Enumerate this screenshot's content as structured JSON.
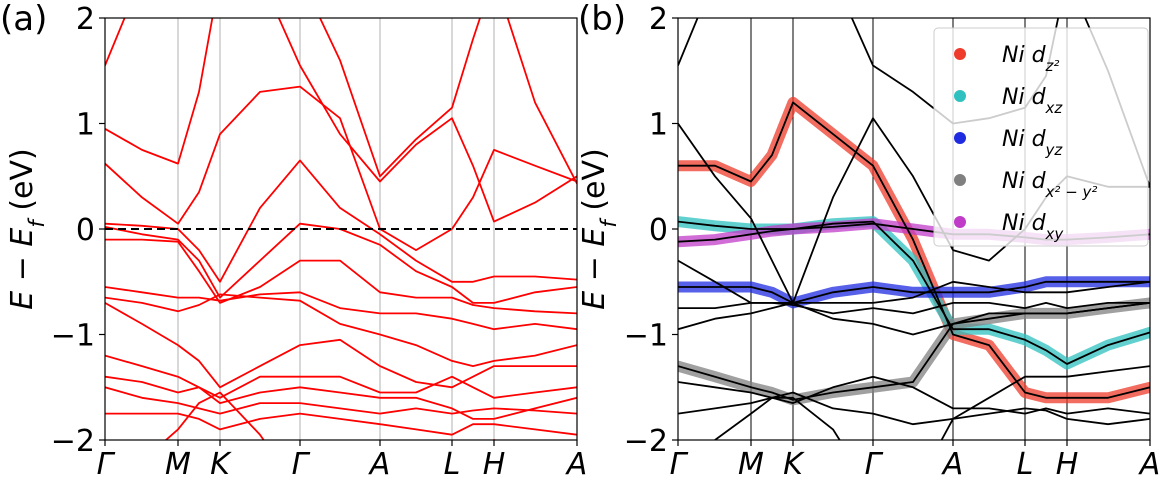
{
  "chart_data": [
    {
      "type": "line",
      "panel_label": "(a)",
      "ylabel": "E − E",
      "ylabel_sub": "f",
      "ylabel_unit": " (eV)",
      "xlim": [
        0,
        4.72
      ],
      "ylim": [
        -2,
        2
      ],
      "xticks": [
        {
          "value": 0,
          "label": "Γ"
        },
        {
          "value": 0.73,
          "label": "M"
        },
        {
          "value": 1.15,
          "label": "K"
        },
        {
          "value": 1.95,
          "label": "Γ"
        },
        {
          "value": 2.75,
          "label": "A"
        },
        {
          "value": 3.47,
          "label": "L"
        },
        {
          "value": 3.89,
          "label": "H"
        },
        {
          "value": 4.72,
          "label": "A"
        }
      ],
      "yticks": [
        {
          "value": -2,
          "label": "−2"
        },
        {
          "value": -1,
          "label": "−1"
        },
        0,
        1,
        2
      ],
      "vline_color": "#b0b0b0",
      "hline": 0,
      "band_color": "#ff0000",
      "x": [
        0,
        0.37,
        0.73,
        0.94,
        1.15,
        1.55,
        1.95,
        2.35,
        2.75,
        3.11,
        3.47,
        3.68,
        3.89,
        4.3,
        4.72
      ],
      "bands": [
        {
          "values": [
            0.95,
            0.75,
            0.62,
            1.3,
            2.4,
            2.4,
            1.55,
            0.9,
            0.45,
            0.8,
            1.05,
            0.6,
            0.07,
            0.25,
            0.5
          ]
        },
        {
          "values": [
            1.55,
            2.4,
            2.4,
            2.4,
            2.4,
            2.4,
            2.4,
            1.6,
            0.5,
            0.85,
            1.15,
            1.8,
            2.4,
            1.2,
            0.43
          ]
        },
        {
          "values": [
            0.62,
            0.3,
            0.05,
            0.35,
            0.9,
            1.3,
            1.35,
            1.05,
            0.0,
            -0.2,
            0.0,
            0.3,
            0.75,
            0.6,
            0.45
          ]
        },
        {
          "values": [
            0.05,
            0.03,
            0.0,
            -0.2,
            -0.5,
            0.2,
            0.65,
            0.2,
            -0.05,
            -0.3,
            -0.5,
            -0.5,
            -0.45,
            -0.45,
            -0.48
          ]
        },
        {
          "values": [
            0.02,
            -0.05,
            -0.1,
            -0.3,
            -0.65,
            -0.3,
            0.05,
            0.0,
            -0.15,
            -0.4,
            -0.55,
            -0.7,
            -0.7,
            -0.6,
            -0.55
          ]
        },
        {
          "values": [
            -0.1,
            -0.1,
            -0.12,
            -0.4,
            -0.7,
            -0.55,
            -0.3,
            -0.3,
            -0.6,
            -0.65,
            -0.65,
            -0.72,
            -0.75,
            -0.78,
            -0.8
          ]
        },
        {
          "values": [
            -0.55,
            -0.6,
            -0.65,
            -0.65,
            -0.68,
            -0.62,
            -0.6,
            -0.75,
            -0.8,
            -0.8,
            -0.85,
            -0.9,
            -0.95,
            -0.9,
            -0.95
          ]
        },
        {
          "values": [
            -0.65,
            -0.7,
            -0.78,
            -0.72,
            -0.62,
            -0.65,
            -0.68,
            -0.9,
            -1.0,
            -1.1,
            -1.25,
            -1.3,
            -1.25,
            -1.2,
            -1.1
          ]
        },
        {
          "values": [
            -0.7,
            -0.9,
            -1.1,
            -1.25,
            -1.5,
            -1.3,
            -1.1,
            -1.05,
            -1.3,
            -1.45,
            -1.5,
            -1.4,
            -1.3,
            -1.3,
            -1.3
          ]
        },
        {
          "values": [
            -1.2,
            -1.3,
            -1.4,
            -1.5,
            -1.6,
            -1.4,
            -1.4,
            -1.4,
            -1.55,
            -1.55,
            -1.4,
            -1.5,
            -1.6,
            -1.55,
            -1.5
          ]
        },
        {
          "values": [
            -1.4,
            -1.45,
            -1.55,
            -1.5,
            -1.65,
            -1.55,
            -1.5,
            -1.55,
            -1.6,
            -1.6,
            -1.7,
            -1.8,
            -1.8,
            -1.7,
            -1.6
          ]
        },
        {
          "values": [
            -1.5,
            -1.6,
            -1.65,
            -1.7,
            -1.75,
            -1.65,
            -1.65,
            -1.7,
            -1.75,
            -1.7,
            -1.75,
            -1.72,
            -1.7,
            -1.72,
            -1.75
          ]
        },
        {
          "values": [
            -1.75,
            -1.75,
            -1.75,
            -1.8,
            -1.9,
            -1.8,
            -1.75,
            -1.8,
            -1.85,
            -1.9,
            -1.95,
            -1.85,
            -1.85,
            -1.9,
            -1.95
          ]
        },
        {
          "values": [
            -2.5,
            -2.2,
            -1.9,
            -1.65,
            -1.55,
            -1.95,
            -2.5,
            -2.5,
            -2.5,
            -2.5,
            -2.5,
            -2.1,
            -2.0,
            -2.1,
            -2.2
          ]
        }
      ]
    },
    {
      "type": "line",
      "panel_label": "(b)",
      "ylabel": "E − E",
      "ylabel_sub": "f",
      "ylabel_unit": " (eV)",
      "xlim": [
        0,
        4.72
      ],
      "ylim": [
        -2,
        2
      ],
      "xticks": [
        {
          "value": 0,
          "label": "Γ"
        },
        {
          "value": 0.73,
          "label": "M"
        },
        {
          "value": 1.15,
          "label": "K"
        },
        {
          "value": 1.95,
          "label": "Γ"
        },
        {
          "value": 2.75,
          "label": "A"
        },
        {
          "value": 3.47,
          "label": "L"
        },
        {
          "value": 3.89,
          "label": "H"
        },
        {
          "value": 4.72,
          "label": "A"
        }
      ],
      "yticks": [
        {
          "value": -2,
          "label": "−2"
        },
        {
          "value": -1,
          "label": "−1"
        },
        0,
        1,
        2
      ],
      "vline_color": "#000000",
      "band_color": "#000000",
      "legend": "upper right",
      "x": [
        0,
        0.37,
        0.73,
        0.94,
        1.15,
        1.55,
        1.95,
        2.35,
        2.75,
        3.11,
        3.47,
        3.68,
        3.89,
        4.3,
        4.72
      ],
      "series": [
        {
          "name": "Ni d",
          "name_sub": "z²",
          "color": "#ee3b2b",
          "values": [
            0.6,
            0.6,
            0.45,
            0.7,
            1.2,
            0.9,
            0.6,
            -0.1,
            -1.0,
            -1.1,
            -1.55,
            -1.6,
            -1.6,
            -1.6,
            -1.5
          ]
        },
        {
          "name": "Ni d",
          "name_sub": "xz",
          "color": "#2fc0c0",
          "values": [
            0.07,
            0.03,
            0.0,
            0.0,
            0.0,
            0.05,
            0.07,
            -0.3,
            -0.95,
            -0.95,
            -1.05,
            -1.15,
            -1.28,
            -1.1,
            -0.98
          ]
        },
        {
          "name": "Ni d",
          "name_sub": "yz",
          "color": "#1f2be0",
          "values": [
            -0.55,
            -0.55,
            -0.55,
            -0.6,
            -0.7,
            -0.6,
            -0.55,
            -0.6,
            -0.6,
            -0.6,
            -0.55,
            -0.5,
            -0.5,
            -0.5,
            -0.5
          ]
        },
        {
          "name": "Ni d",
          "name_sub": "x² − y²",
          "color": "#808080",
          "values": [
            -1.3,
            -1.4,
            -1.5,
            -1.55,
            -1.62,
            -1.55,
            -1.5,
            -1.45,
            -0.9,
            -0.85,
            -0.8,
            -0.8,
            -0.8,
            -0.75,
            -0.7
          ]
        },
        {
          "name": "Ni d",
          "name_sub": "xy",
          "color": "#c03cc8",
          "values": [
            -0.12,
            -0.1,
            -0.05,
            -0.02,
            0.0,
            0.02,
            0.05,
            0.0,
            -0.05,
            -0.05,
            -0.08,
            -0.1,
            -0.1,
            -0.08,
            -0.05
          ]
        }
      ],
      "bands": [
        {
          "values": [
            1.55,
            2.4,
            2.4,
            2.4,
            2.4,
            2.4,
            1.55,
            1.3,
            1.0,
            1.05,
            1.15,
            1.45,
            2.4,
            1.5,
            0.4
          ]
        },
        {
          "values": [
            0.6,
            0.6,
            0.45,
            0.7,
            1.2,
            0.9,
            0.6,
            -0.1,
            -1.0,
            -1.1,
            -1.55,
            -1.6,
            -1.6,
            -1.6,
            -1.5
          ]
        },
        {
          "values": [
            1.0,
            0.5,
            0.1,
            -0.3,
            -0.7,
            0.3,
            1.05,
            0.5,
            -0.2,
            -0.3,
            0.0,
            0.3,
            0.5,
            0.4,
            0.4
          ]
        },
        {
          "values": [
            0.07,
            0.03,
            0.0,
            0.0,
            0.0,
            0.05,
            0.07,
            -0.3,
            -0.95,
            -0.95,
            -1.05,
            -1.15,
            -1.28,
            -1.1,
            -0.98
          ]
        },
        {
          "values": [
            -0.12,
            -0.1,
            -0.05,
            -0.02,
            0.0,
            0.02,
            0.05,
            0.0,
            -0.05,
            -0.05,
            -0.08,
            -0.1,
            -0.1,
            -0.08,
            -0.05
          ]
        },
        {
          "values": [
            -0.55,
            -0.55,
            -0.55,
            -0.6,
            -0.7,
            -0.6,
            -0.55,
            -0.6,
            -0.6,
            -0.6,
            -0.55,
            -0.5,
            -0.5,
            -0.5,
            -0.5
          ]
        },
        {
          "values": [
            -0.3,
            -0.5,
            -0.7,
            -0.7,
            -0.7,
            -0.7,
            -0.7,
            -0.65,
            -0.5,
            -0.55,
            -0.6,
            -0.6,
            -0.6,
            -0.55,
            -0.5
          ]
        },
        {
          "values": [
            -0.75,
            -0.75,
            -0.7,
            -0.7,
            -0.72,
            -0.8,
            -0.75,
            -0.8,
            -0.7,
            -0.7,
            -0.75,
            -0.7,
            -0.75,
            -0.7,
            -0.7
          ]
        },
        {
          "values": [
            -0.95,
            -0.85,
            -0.8,
            -0.75,
            -0.7,
            -0.85,
            -0.9,
            -1.0,
            -0.9,
            -0.8,
            -0.8,
            -0.8,
            -0.8,
            -0.75,
            -0.7
          ]
        },
        {
          "values": [
            -1.3,
            -1.4,
            -1.5,
            -1.55,
            -1.62,
            -1.55,
            -1.5,
            -1.45,
            -0.9,
            -0.85,
            -0.8,
            -0.8,
            -0.8,
            -0.75,
            -0.7
          ]
        },
        {
          "values": [
            -1.45,
            -1.5,
            -1.55,
            -1.6,
            -1.65,
            -1.5,
            -1.4,
            -1.5,
            -1.7,
            -1.7,
            -1.75,
            -1.7,
            -1.75,
            -1.7,
            -1.75
          ]
        },
        {
          "values": [
            -1.75,
            -1.7,
            -1.65,
            -1.6,
            -1.55,
            -1.7,
            -1.75,
            -1.85,
            -1.8,
            -1.75,
            -1.7,
            -1.72,
            -1.8,
            -1.85,
            -1.8
          ]
        },
        {
          "values": [
            -2.5,
            -2.0,
            -1.75,
            -1.6,
            -1.6,
            -1.9,
            -2.5,
            -2.5,
            -1.8,
            -1.6,
            -1.4,
            -1.4,
            -1.4,
            -1.35,
            -1.3
          ]
        }
      ]
    }
  ]
}
